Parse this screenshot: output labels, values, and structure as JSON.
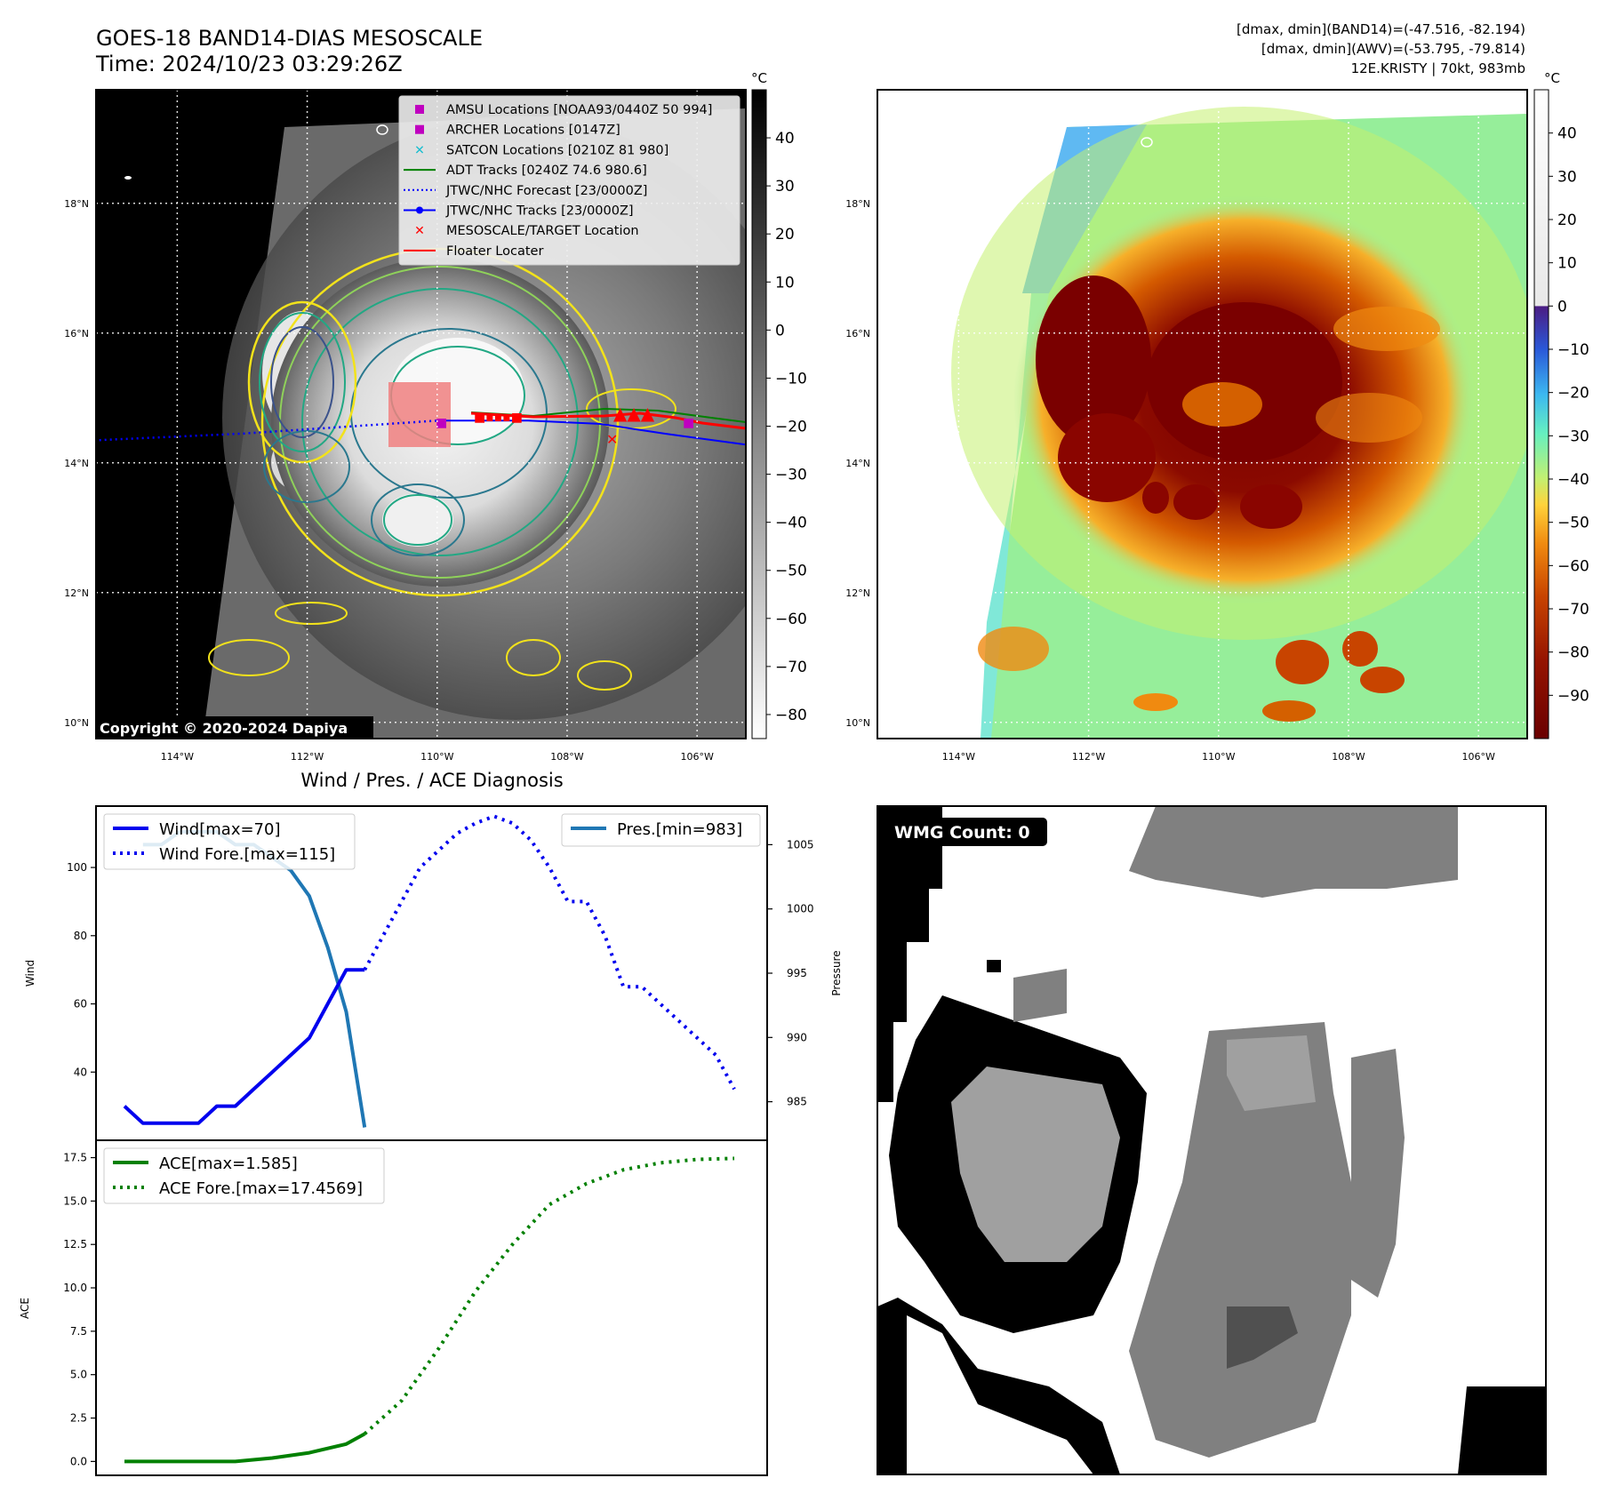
{
  "header": {
    "title": "GOES-18 BAND14-DIAS MESOSCALE",
    "time": "Time: 2024/10/23 03:29:26Z",
    "range_band14": "[dmax, dmin](BAND14)=(-47.516, -82.194)",
    "range_awv": "[dmax, dmin](AWV)=(-53.795, -79.814)",
    "storm": "12E.KRISTY | 70kt, 983mb"
  },
  "map_axes": {
    "lon_ticks": [
      "114°W",
      "112°W",
      "110°W",
      "108°W",
      "106°W"
    ],
    "lat_ticks": [
      "18°N",
      "16°N",
      "14°N",
      "12°N",
      "10°N"
    ],
    "lon_values": [
      -114,
      -112,
      -110,
      -108,
      -106
    ],
    "lat_values": [
      18,
      16,
      14,
      12,
      10
    ],
    "lon_range": [
      -115.25,
      -105.25
    ],
    "lat_range": [
      9.75,
      19.75
    ]
  },
  "ir_panel": {
    "copyright": "Copyright © 2020-2024 Dapiya",
    "colorbar_unit": "°C",
    "colorbar_ticks": [
      "40",
      "30",
      "20",
      "10",
      "0",
      "−10",
      "−20",
      "−30",
      "−40",
      "−50",
      "−60",
      "−70",
      "−80"
    ],
    "colorbar_values": [
      40,
      30,
      20,
      10,
      0,
      -10,
      -20,
      -30,
      -40,
      -50,
      -60,
      -70,
      -80
    ],
    "colorbar_range": [
      -85,
      50
    ],
    "legend": [
      {
        "label": "AMSU Locations [NOAA93/0440Z 50 994]",
        "color": "#bf00bf",
        "marker": "square"
      },
      {
        "label": "ARCHER Locations [0147Z]",
        "color": "#bf00bf",
        "marker": "square"
      },
      {
        "label": "SATCON Locations [0210Z 81 980]",
        "color": "#17becf",
        "marker": "x"
      },
      {
        "label": "ADT Tracks [0240Z 74.6 980.6]",
        "color": "#008000",
        "marker": "line"
      },
      {
        "label": "JTWC/NHC Forecast [23/0000Z]",
        "color": "#0000ff",
        "marker": "dotted"
      },
      {
        "label": "JTWC/NHC Tracks [23/0000Z]",
        "color": "#0000ff",
        "marker": "line-dot"
      },
      {
        "label": "MESOSCALE/TARGET Location",
        "color": "#ff0000",
        "marker": "x"
      },
      {
        "label": "Floater Locater",
        "color": "#ff0000",
        "marker": "line"
      }
    ],
    "forecast_track": [
      [
        -115.2,
        14.35
      ],
      [
        -113,
        14.45
      ],
      [
        -111.5,
        14.55
      ],
      [
        -110,
        14.65
      ]
    ],
    "observed_track": [
      [
        -110,
        14.65
      ],
      [
        -108.6,
        14.65
      ],
      [
        -107.5,
        14.6
      ],
      [
        -106.5,
        14.45
      ],
      [
        -105.25,
        14.28
      ]
    ]
  },
  "awv_panel": {
    "colorbar_unit": "°C",
    "colorbar_ticks": [
      "40",
      "30",
      "20",
      "10",
      "0",
      "−10",
      "−20",
      "−30",
      "−40",
      "−50",
      "−60",
      "−70",
      "−80",
      "−90"
    ],
    "colorbar_values": [
      40,
      30,
      20,
      10,
      0,
      -10,
      -20,
      -30,
      -40,
      -50,
      -60,
      -70,
      -80,
      -90
    ],
    "colorbar_range": [
      -100,
      50
    ]
  },
  "wmg_panel": {
    "label": "WMG Count: 0"
  },
  "diagnosis": {
    "title": "Wind / Pres. / ACE Diagnosis",
    "wind_ylabel": "Wind",
    "pres_ylabel": "Pressure",
    "ace_ylabel": "ACE",
    "wind_legend": [
      "Wind[max=70]",
      "Wind Fore.[max=115]"
    ],
    "pres_legend": [
      "Pres.[min=983]"
    ],
    "ace_legend": [
      "ACE[max=1.585]",
      "ACE Fore.[max=17.4569]"
    ],
    "wind_ticks": [
      "40",
      "60",
      "80",
      "100"
    ],
    "pres_ticks": [
      "985",
      "990",
      "995",
      "1000",
      "1005"
    ],
    "ace_ticks": [
      "0.0",
      "2.5",
      "5.0",
      "7.5",
      "10.0",
      "12.5",
      "15.0",
      "17.5"
    ]
  },
  "chart_data": [
    {
      "type": "line",
      "title": "Wind / Pres. / ACE Diagnosis",
      "ylabel": "Wind",
      "ylim": [
        20,
        118
      ],
      "x": [
        0,
        1,
        2,
        3,
        4,
        5,
        6,
        7,
        8,
        9,
        10,
        11,
        12,
        13,
        14,
        15,
        16,
        17,
        18,
        19,
        20,
        21,
        22,
        23,
        24,
        25,
        26,
        27,
        28,
        29,
        30,
        31,
        32,
        33
      ],
      "series": [
        {
          "name": "Wind[max=70]",
          "x": [
            0,
            1,
            2,
            3,
            4,
            5,
            6,
            7,
            8,
            9,
            10,
            11,
            12,
            13
          ],
          "values": [
            30,
            25,
            25,
            25,
            25,
            30,
            30,
            35,
            40,
            45,
            50,
            60,
            70,
            70
          ],
          "style": "solid",
          "color": "#0000ee"
        },
        {
          "name": "Wind Fore.[max=115]",
          "x": [
            13,
            14,
            15,
            16,
            17,
            18,
            19,
            20,
            21,
            22,
            23,
            24,
            25,
            26,
            27,
            28,
            29,
            30,
            31,
            32,
            33
          ],
          "values": [
            70,
            80,
            90,
            100,
            105,
            110,
            113,
            115,
            113,
            108,
            100,
            90,
            90,
            80,
            65,
            65,
            60,
            55,
            50,
            45,
            35
          ],
          "style": "dotted",
          "color": "#0000ee"
        }
      ]
    },
    {
      "type": "line",
      "ylabel": "Pressure",
      "ylim": [
        982,
        1008
      ],
      "series": [
        {
          "name": "Pres.[min=983]",
          "x": [
            1,
            2,
            3,
            4,
            5,
            6,
            7,
            8,
            9,
            10,
            11,
            12,
            13
          ],
          "values": [
            1005,
            1005,
            1006,
            1006,
            1006,
            1005,
            1005,
            1004,
            1003,
            1001,
            997,
            992,
            983
          ],
          "style": "solid",
          "color": "#1f77b4"
        }
      ]
    },
    {
      "type": "line",
      "ylabel": "ACE",
      "ylim": [
        -0.8,
        18.5
      ],
      "series": [
        {
          "name": "ACE[max=1.585]",
          "x": [
            0,
            2,
            4,
            6,
            8,
            10,
            12,
            13
          ],
          "values": [
            0,
            0,
            0,
            0,
            0.2,
            0.5,
            1.0,
            1.585
          ],
          "style": "solid",
          "color": "#008000"
        },
        {
          "name": "ACE Fore.[max=17.4569]",
          "x": [
            13,
            15,
            17,
            19,
            21,
            23,
            25,
            27,
            29,
            31,
            33
          ],
          "values": [
            1.585,
            3.5,
            6.5,
            9.8,
            12.5,
            14.8,
            16.0,
            16.8,
            17.2,
            17.4,
            17.4569
          ],
          "style": "dotted",
          "color": "#008000"
        }
      ]
    }
  ]
}
